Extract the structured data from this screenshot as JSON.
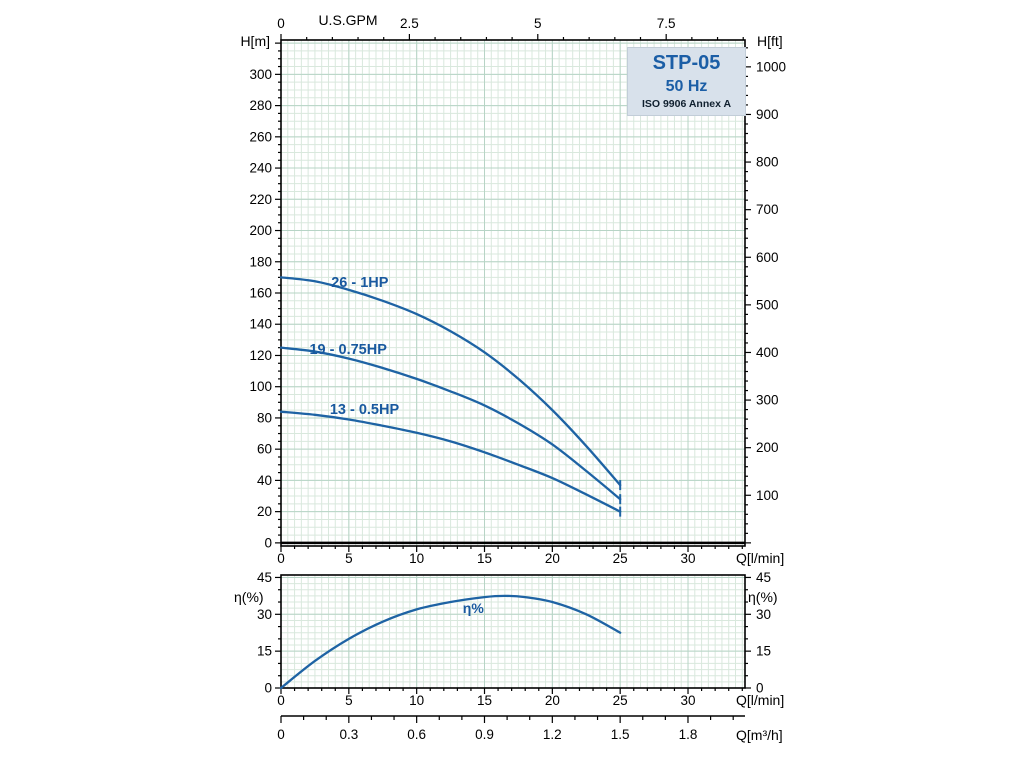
{
  "title_block": {
    "model": "STP-05",
    "frequency": "50 Hz",
    "standard": "ISO 9906 Annex A"
  },
  "axes_labels": {
    "h_m": "H[m]",
    "h_ft": "H[ft]",
    "usgpm": "U.S.GPM",
    "q_lmin": "Q[l/min]",
    "eta": "η(%)",
    "q_m3h": "Q[m³/h]"
  },
  "colors": {
    "curve": "#1e63a4",
    "curve_label": "#19599f",
    "grid_minor": "#d9e8dd",
    "grid_major": "#b7d4c6",
    "axis": "#000000",
    "title_bg": "#d8e1eb"
  },
  "chart_data": [
    {
      "type": "line",
      "name": "head-curves",
      "title": "STP-05 50 Hz pump head curves",
      "xlabel": "Q[l/min]",
      "x2label": "U.S.GPM",
      "ylabel": "H[m]",
      "y2label": "H[ft]",
      "xlim": [
        0,
        34
      ],
      "x2lim_gpm": [
        0,
        9
      ],
      "ylim": [
        -2,
        322
      ],
      "y2lim_ft": [
        0,
        1060
      ],
      "grid": true,
      "x_ticks": [
        0,
        5,
        10,
        15,
        20,
        25,
        30
      ],
      "x2_ticks": [
        0,
        2.5,
        5,
        7.5
      ],
      "y_ticks": [
        0,
        20,
        40,
        60,
        80,
        100,
        120,
        140,
        160,
        180,
        200,
        220,
        240,
        260,
        280,
        300
      ],
      "y2_ticks": [
        100,
        200,
        300,
        400,
        500,
        600,
        700,
        800,
        900,
        1000
      ],
      "series": [
        {
          "name": "26 - 1HP",
          "label_pos": [
            3.7,
            164
          ],
          "points": [
            [
              0,
              170
            ],
            [
              2.5,
              167.5
            ],
            [
              5,
              162
            ],
            [
              7.5,
              155
            ],
            [
              10,
              146.5
            ],
            [
              12.5,
              135.5
            ],
            [
              15,
              122
            ],
            [
              17.5,
              105
            ],
            [
              20,
              85
            ],
            [
              22.5,
              62
            ],
            [
              25,
              37
            ]
          ]
        },
        {
          "name": "19 - 0.75HP",
          "label_pos": [
            2.1,
            121
          ],
          "points": [
            [
              0,
              125
            ],
            [
              2.5,
              122.5
            ],
            [
              5,
              118
            ],
            [
              7.5,
              112
            ],
            [
              10,
              105
            ],
            [
              12.5,
              97
            ],
            [
              15,
              88
            ],
            [
              17.5,
              76.5
            ],
            [
              20,
              63
            ],
            [
              22.5,
              46
            ],
            [
              25,
              28
            ]
          ]
        },
        {
          "name": "13 - 0.5HP",
          "label_pos": [
            3.6,
            82.5
          ],
          "points": [
            [
              0,
              84
            ],
            [
              2.5,
              82
            ],
            [
              5,
              79
            ],
            [
              7.5,
              75
            ],
            [
              10,
              70.5
            ],
            [
              12.5,
              65
            ],
            [
              15,
              58
            ],
            [
              17.5,
              50
            ],
            [
              20,
              41.5
            ],
            [
              22.5,
              31
            ],
            [
              25,
              20
            ]
          ]
        }
      ]
    },
    {
      "type": "line",
      "name": "efficiency",
      "title": "Efficiency curve",
      "xlabel": "Q[l/min]",
      "ylabel": "η(%)",
      "y2label": "η(%)",
      "xlim": [
        0,
        34
      ],
      "ylim": [
        0,
        46
      ],
      "grid": true,
      "x_ticks": [
        0,
        5,
        10,
        15,
        20,
        25,
        30
      ],
      "y_ticks": [
        0,
        15,
        30,
        45
      ],
      "series": [
        {
          "name": "η%",
          "label_pos": [
            13.4,
            30.5
          ],
          "points": [
            [
              0,
              0
            ],
            [
              2.5,
              11
            ],
            [
              5,
              20
            ],
            [
              7.5,
              27
            ],
            [
              10,
              32
            ],
            [
              12.5,
              35
            ],
            [
              15,
              37
            ],
            [
              16.5,
              37.5
            ],
            [
              18,
              37
            ],
            [
              20,
              35
            ],
            [
              22.5,
              30
            ],
            [
              25,
              22.5
            ]
          ]
        }
      ]
    },
    {
      "type": "axis",
      "name": "m3h-axis",
      "label": "Q[m³/h]",
      "lim": [
        0,
        2.05
      ],
      "ticks": [
        0,
        0.3,
        0.6,
        0.9,
        1.2,
        1.5,
        1.8
      ]
    }
  ]
}
